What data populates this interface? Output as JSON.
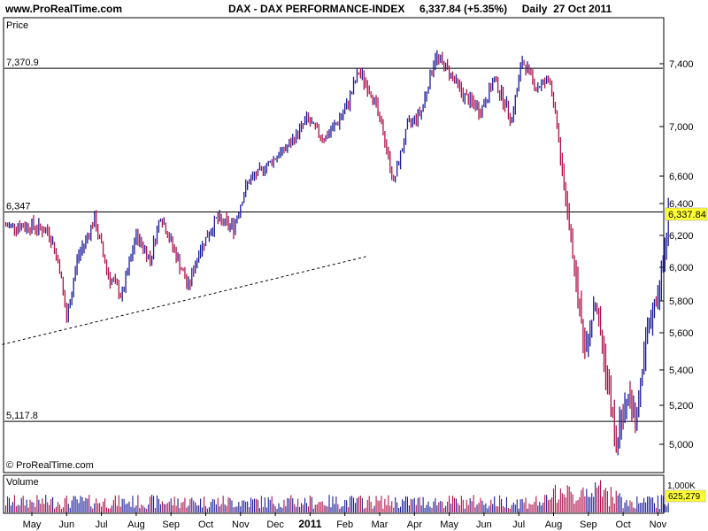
{
  "header": {
    "site": "www.ProRealTime.com",
    "title": "DAX - DAX PERFORMANCE-INDEX",
    "last_value": "6,337.84 (+5.35%)",
    "period": "Daily",
    "date": "27 Oct 2011"
  },
  "chart_data": {
    "type": "bar",
    "title": "DAX - DAX PERFORMANCE-INDEX",
    "price_panel_label": "Price",
    "volume_panel_label": "Volume",
    "copyright": "© ProRealTime.com",
    "ylim": [
      4900,
      7600
    ],
    "y_ticks": [
      5000,
      5200,
      5400,
      5600,
      5800,
      6000,
      6200,
      6400,
      6600,
      7000,
      7400
    ],
    "y_tick_labels": [
      "5,000",
      "5,200",
      "5,400",
      "5,600",
      "5,800",
      "6,000",
      "6,200",
      "6,400",
      "6,600",
      "7,000",
      "7,400"
    ],
    "x_tick_labels": [
      "May",
      "Jun",
      "Jul",
      "Aug",
      "Sep",
      "Oct",
      "Nov",
      "Dec",
      "2011",
      "Feb",
      "Mar",
      "Apr",
      "May",
      "Jun",
      "Jul",
      "Aug",
      "Sep",
      "Oct",
      "Nov"
    ],
    "horizontal_levels": [
      {
        "label": "7,370.9",
        "value": 7370.9
      },
      {
        "label": "6,347",
        "value": 6347
      },
      {
        "label": "5,117.8",
        "value": 5117.8
      }
    ],
    "last_price_label": "6,337.84",
    "trendline": {
      "start": {
        "date": "2010-04-01",
        "value": 5530
      },
      "end": {
        "date": "2011-02-21",
        "value": 6070
      }
    },
    "volume_axis_label": "1,000K",
    "volume_last_label": "625,279",
    "colors": {
      "up": "#1b1b9c",
      "down": "#b0104a",
      "last_price_bg": "#ffff33"
    },
    "price_anchors": [
      {
        "month": 0,
        "value": 6260
      },
      {
        "month": 0.5,
        "value": 6220
      },
      {
        "month": 0.8,
        "value": 6000
      },
      {
        "month": 1.0,
        "value": 5680
      },
      {
        "month": 1.3,
        "value": 6050
      },
      {
        "month": 1.8,
        "value": 6300
      },
      {
        "month": 2.2,
        "value": 5950
      },
      {
        "month": 2.6,
        "value": 5830
      },
      {
        "month": 3.0,
        "value": 6200
      },
      {
        "month": 3.4,
        "value": 6050
      },
      {
        "month": 3.7,
        "value": 6330
      },
      {
        "month": 4.1,
        "value": 6100
      },
      {
        "month": 4.5,
        "value": 5880
      },
      {
        "month": 4.8,
        "value": 6100
      },
      {
        "month": 5.3,
        "value": 6300
      },
      {
        "month": 5.8,
        "value": 6250
      },
      {
        "month": 6.2,
        "value": 6550
      },
      {
        "month": 6.8,
        "value": 6700
      },
      {
        "month": 7.4,
        "value": 6850
      },
      {
        "month": 7.9,
        "value": 7050
      },
      {
        "month": 8.4,
        "value": 6900
      },
      {
        "month": 9.0,
        "value": 7100
      },
      {
        "month": 9.4,
        "value": 7350
      },
      {
        "month": 9.8,
        "value": 7200
      },
      {
        "month": 10.1,
        "value": 6950
      },
      {
        "month": 10.4,
        "value": 6550
      },
      {
        "month": 10.8,
        "value": 7000
      },
      {
        "month": 11.2,
        "value": 7100
      },
      {
        "month": 11.6,
        "value": 7450
      },
      {
        "month": 12.0,
        "value": 7350
      },
      {
        "month": 12.4,
        "value": 7200
      },
      {
        "month": 12.9,
        "value": 7100
      },
      {
        "month": 13.3,
        "value": 7300
      },
      {
        "month": 13.8,
        "value": 7050
      },
      {
        "month": 14.1,
        "value": 7420
      },
      {
        "month": 14.5,
        "value": 7250
      },
      {
        "month": 14.9,
        "value": 7300
      },
      {
        "month": 15.1,
        "value": 7000
      },
      {
        "month": 15.3,
        "value": 6500
      },
      {
        "month": 15.6,
        "value": 6000
      },
      {
        "month": 15.9,
        "value": 5500
      },
      {
        "month": 16.2,
        "value": 5800
      },
      {
        "month": 16.5,
        "value": 5400
      },
      {
        "month": 16.8,
        "value": 5000
      },
      {
        "month": 17.1,
        "value": 5250
      },
      {
        "month": 17.4,
        "value": 5150
      },
      {
        "month": 17.7,
        "value": 5600
      },
      {
        "month": 18.0,
        "value": 5850
      },
      {
        "month": 18.15,
        "value": 6000
      },
      {
        "month": 18.3,
        "value": 6337.84
      }
    ]
  }
}
